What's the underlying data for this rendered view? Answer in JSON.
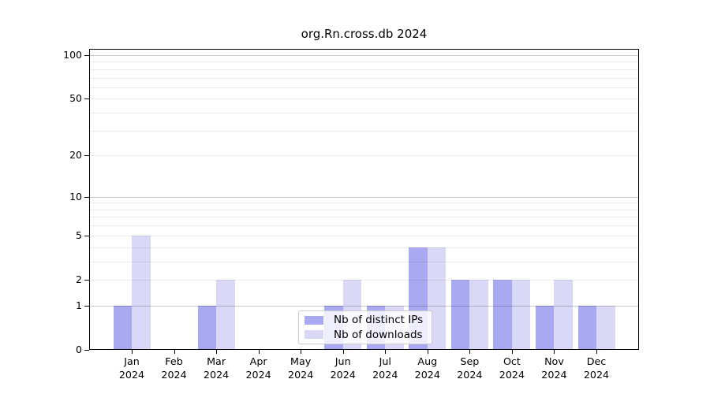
{
  "title": "org.Rn.cross.db 2024",
  "chart_data": {
    "type": "bar",
    "title": "org.Rn.cross.db 2024",
    "x_months": [
      "Jan",
      "Feb",
      "Mar",
      "Apr",
      "May",
      "Jun",
      "Jul",
      "Aug",
      "Sep",
      "Oct",
      "Nov",
      "Dec"
    ],
    "x_year": "2024",
    "series": [
      {
        "name": "Nb of distinct IPs",
        "color": "#a9a9f1",
        "values": [
          1,
          0,
          1,
          0,
          0,
          1,
          1,
          4,
          2,
          2,
          1,
          1
        ]
      },
      {
        "name": "Nb of downloads",
        "color": "#d9d9f7",
        "values": [
          5,
          0,
          2,
          0,
          0,
          2,
          1,
          4,
          2,
          2,
          2,
          1
        ]
      }
    ],
    "yscale": "log1p",
    "ylim": [
      0,
      111
    ],
    "ytick_labels": [
      "100",
      "50",
      "20",
      "10",
      "5",
      "2",
      "1",
      "0"
    ],
    "ytick_values": [
      100,
      50,
      20,
      10,
      5,
      2,
      1,
      0
    ],
    "minor_grid_values": [
      2,
      3,
      4,
      5,
      6,
      7,
      8,
      9,
      20,
      30,
      40,
      50,
      60,
      70,
      80,
      90
    ],
    "major_grid_values": [
      1,
      10,
      100
    ],
    "grid": true,
    "legend_position": "lower center"
  }
}
